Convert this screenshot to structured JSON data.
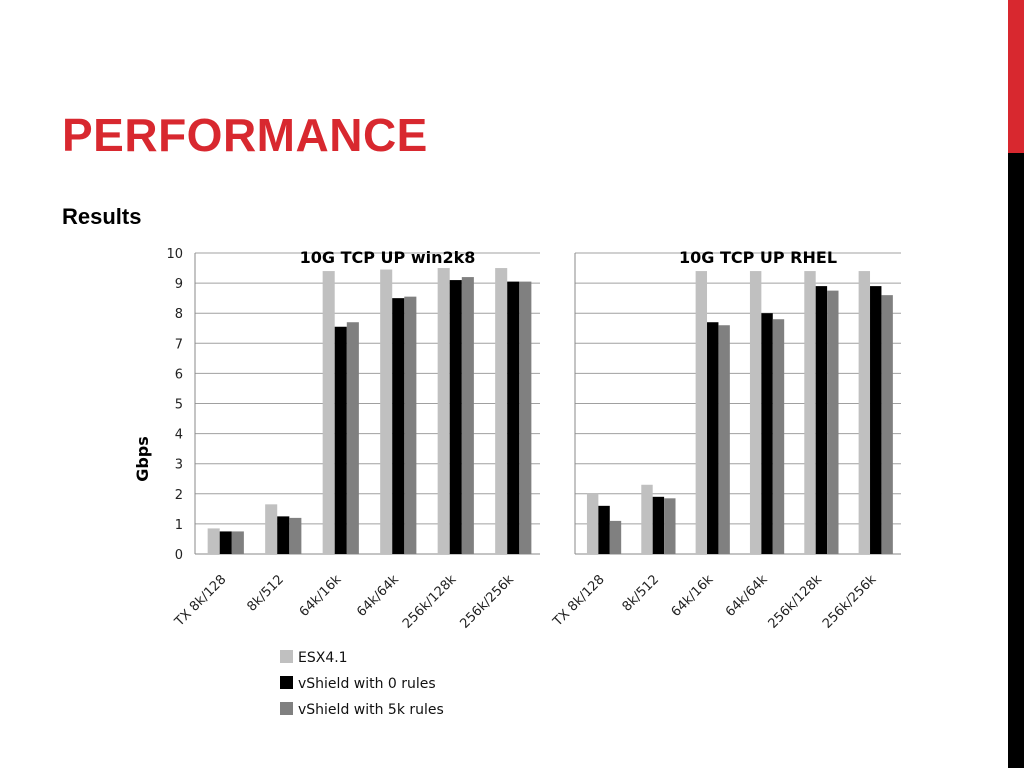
{
  "slide": {
    "title": "PERFORMANCE",
    "subtitle": "Results",
    "accent_color": "#d8282f"
  },
  "chart_data": [
    {
      "type": "bar",
      "title": "10G TCP UP win2k8",
      "ylabel": "Gbps",
      "ylim": [
        0,
        10
      ],
      "yticks": [
        0,
        1,
        2,
        3,
        4,
        5,
        6,
        7,
        8,
        9,
        10
      ],
      "grid": true,
      "legend_position": "bottom",
      "categories": [
        "TX 8k/128",
        "8k/512",
        "64k/16k",
        "64k/64k",
        "256k/128k",
        "256k/256k"
      ],
      "series": [
        {
          "name": "ESX4.1",
          "color": "#c0c0c0",
          "values": [
            0.85,
            1.65,
            9.4,
            9.45,
            9.5,
            9.5
          ]
        },
        {
          "name": "vShield with 0 rules",
          "color": "#000000",
          "values": [
            0.75,
            1.25,
            7.55,
            8.5,
            9.1,
            9.05
          ]
        },
        {
          "name": "vShield with 5k rules",
          "color": "#808080",
          "values": [
            0.75,
            1.2,
            7.7,
            8.55,
            9.2,
            9.05
          ]
        }
      ]
    },
    {
      "type": "bar",
      "title": "10G TCP UP RHEL",
      "ylim": [
        0,
        10
      ],
      "grid": true,
      "categories": [
        "TX 8k/128",
        "8k/512",
        "64k/16k",
        "64k/64k",
        "256k/128k",
        "256k/256k"
      ],
      "series": [
        {
          "name": "ESX4.1",
          "color": "#c0c0c0",
          "values": [
            2.0,
            2.3,
            9.4,
            9.4,
            9.4,
            9.4
          ]
        },
        {
          "name": "vShield with 0 rules",
          "color": "#000000",
          "values": [
            1.6,
            1.9,
            7.7,
            8.0,
            8.9,
            8.9
          ]
        },
        {
          "name": "vShield with 5k rules",
          "color": "#808080",
          "values": [
            1.1,
            1.85,
            7.6,
            7.8,
            8.75,
            8.6
          ]
        }
      ]
    }
  ]
}
